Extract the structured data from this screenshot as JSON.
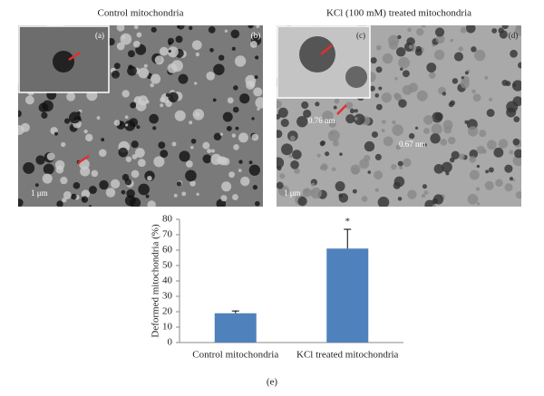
{
  "panels": {
    "left_title": "Control mitochondria",
    "right_title": "KCl (100 mM) treated mitochondria",
    "labels": [
      "(a)",
      "(b)",
      "(c)",
      "(d)"
    ],
    "left_scale": "1 μm",
    "right_scale": "1 μm",
    "right_measures": [
      "0.76 nm",
      "0.67 nm"
    ]
  },
  "chart_data": {
    "type": "bar",
    "panel_label": "(e)",
    "y_label": "Deformed mitochondria (%)",
    "categories": [
      "Control mitochondria",
      "KCl treated mitochondria"
    ],
    "values": [
      19,
      61
    ],
    "errors": [
      1.5,
      12.5
    ],
    "color": "#4f81bd",
    "annotation": "*",
    "ylim": [
      0,
      80
    ],
    "yticks": [
      0,
      10,
      20,
      30,
      40,
      50,
      60,
      70,
      80
    ]
  }
}
